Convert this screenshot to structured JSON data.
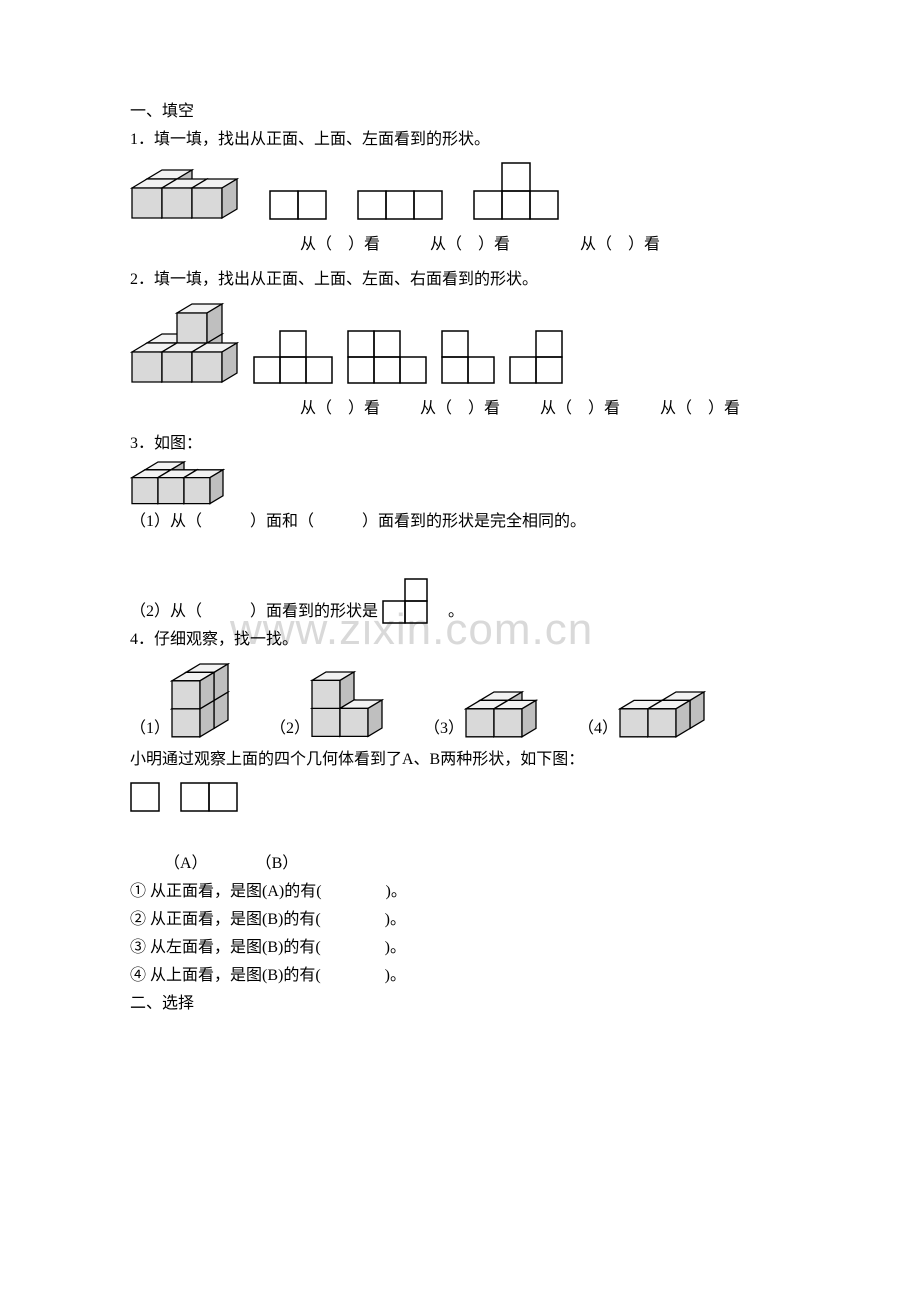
{
  "colors": {
    "text": "#000000",
    "cube_fill": "#d9d9d9",
    "cube_fill_dark": "#bfbfbf",
    "cube_stroke": "#000000",
    "grid_stroke": "#000000",
    "background": "#ffffff",
    "watermark": "#d9d9d9"
  },
  "typography": {
    "body_fontsize": 16,
    "watermark_fontsize": 44,
    "font_family": "SimSun"
  },
  "watermark": "www.zixin.com.cn",
  "section1": {
    "title": "一、填空"
  },
  "q1": {
    "prompt": "1．填一填，找出从正面、上面、左面看到的形状。",
    "caption_prefix": "从（",
    "caption_suffix": "）看",
    "solid": {
      "type": "isometric_cubes",
      "unit": 30,
      "cells": [
        [
          0,
          0,
          0
        ],
        [
          1,
          0,
          0
        ],
        [
          2,
          0,
          0
        ],
        [
          0,
          1,
          0
        ]
      ],
      "fill": "#d9d9d9",
      "dark_fill": "#bfbfbf",
      "stroke": "#000000"
    },
    "views": [
      {
        "type": "grid",
        "cols": 2,
        "rows": 1,
        "cells": [
          [
            0,
            0
          ],
          [
            1,
            0
          ]
        ],
        "cell": 28
      },
      {
        "type": "grid",
        "cols": 3,
        "rows": 1,
        "cells": [
          [
            0,
            0
          ],
          [
            1,
            0
          ],
          [
            2,
            0
          ]
        ],
        "cell": 28
      },
      {
        "type": "grid",
        "cols": 3,
        "rows": 2,
        "cells": [
          [
            0,
            0
          ],
          [
            1,
            0
          ],
          [
            2,
            0
          ],
          [
            1,
            1
          ]
        ],
        "cell": 28
      }
    ]
  },
  "q2": {
    "prompt": "2．填一填，找出从正面、上面、左面、右面看到的形状。",
    "caption_prefix": "从（",
    "caption_suffix": "）看",
    "solid": {
      "type": "isometric_cubes",
      "unit": 30,
      "cells": [
        [
          0,
          0,
          0
        ],
        [
          1,
          0,
          0
        ],
        [
          2,
          0,
          0
        ],
        [
          0,
          1,
          0
        ],
        [
          1,
          1,
          0
        ],
        [
          1,
          1,
          1
        ]
      ],
      "fill": "#d9d9d9",
      "dark_fill": "#bfbfbf",
      "stroke": "#000000"
    },
    "views": [
      {
        "type": "grid",
        "cols": 3,
        "rows": 2,
        "cells": [
          [
            0,
            0
          ],
          [
            1,
            0
          ],
          [
            2,
            0
          ],
          [
            1,
            1
          ]
        ],
        "cell": 26
      },
      {
        "type": "grid",
        "cols": 3,
        "rows": 2,
        "cells": [
          [
            0,
            0
          ],
          [
            1,
            0
          ],
          [
            2,
            0
          ],
          [
            0,
            1
          ],
          [
            1,
            1
          ]
        ],
        "cell": 26
      },
      {
        "type": "grid",
        "cols": 2,
        "rows": 2,
        "cells": [
          [
            0,
            0
          ],
          [
            1,
            0
          ],
          [
            0,
            1
          ]
        ],
        "cell": 26
      },
      {
        "type": "grid",
        "cols": 2,
        "rows": 2,
        "cells": [
          [
            0,
            0
          ],
          [
            1,
            0
          ],
          [
            1,
            1
          ]
        ],
        "cell": 26
      }
    ]
  },
  "q3": {
    "prompt": "3．如图：",
    "solid": {
      "type": "isometric_cubes",
      "unit": 26,
      "cells": [
        [
          0,
          0,
          0
        ],
        [
          1,
          0,
          0
        ],
        [
          2,
          0,
          0
        ],
        [
          0,
          1,
          0
        ]
      ],
      "fill": "#d9d9d9",
      "dark_fill": "#bfbfbf",
      "stroke": "#000000"
    },
    "sub1": "（1）从（　　　）面和（　　　）面看到的形状是完全相同的。",
    "sub2_before": "（2）从（　　　）面看到的形状是",
    "sub2_after": "　。",
    "sub2_shape": {
      "type": "grid",
      "cols": 2,
      "rows": 2,
      "cells": [
        [
          0,
          0
        ],
        [
          1,
          0
        ],
        [
          1,
          1
        ]
      ],
      "cell": 22
    }
  },
  "q4": {
    "prompt": "4．仔细观察，找一找。",
    "items": [
      {
        "label": "（1）",
        "solid": {
          "unit": 28,
          "cells": [
            [
              0,
              0,
              0
            ],
            [
              0,
              1,
              0
            ],
            [
              0,
              0,
              1
            ],
            [
              0,
              1,
              1
            ]
          ]
        }
      },
      {
        "label": "（2）",
        "solid": {
          "unit": 28,
          "cells": [
            [
              0,
              0,
              0
            ],
            [
              1,
              0,
              0
            ],
            [
              0,
              0,
              1
            ]
          ]
        }
      },
      {
        "label": "（3）",
        "solid": {
          "unit": 28,
          "cells": [
            [
              0,
              0,
              0
            ],
            [
              1,
              0,
              0
            ],
            [
              0,
              1,
              0
            ]
          ]
        }
      },
      {
        "label": "（4）",
        "solid": {
          "unit": 28,
          "cells": [
            [
              0,
              0,
              0
            ],
            [
              1,
              0,
              0
            ],
            [
              1,
              1,
              0
            ]
          ]
        }
      }
    ],
    "note": "小明通过观察上面的四个几何体看到了A、B两种形状，如下图：",
    "shapeA": {
      "type": "grid",
      "cols": 1,
      "rows": 1,
      "cells": [
        [
          0,
          0
        ]
      ],
      "cell": 28
    },
    "shapeB": {
      "type": "grid",
      "cols": 2,
      "rows": 1,
      "cells": [
        [
          0,
          0
        ],
        [
          1,
          0
        ]
      ],
      "cell": 28
    },
    "labelA": "（A）",
    "labelB": "（B）",
    "subs": [
      "① 从正面看，是图(A)的有(　　　　)。",
      "② 从正面看，是图(B)的有(　　　　)。",
      "③ 从左面看，是图(B)的有(　　　　)。",
      "④ 从上面看，是图(B)的有(　　　　)。"
    ]
  },
  "section2": {
    "title": "二、选择"
  }
}
